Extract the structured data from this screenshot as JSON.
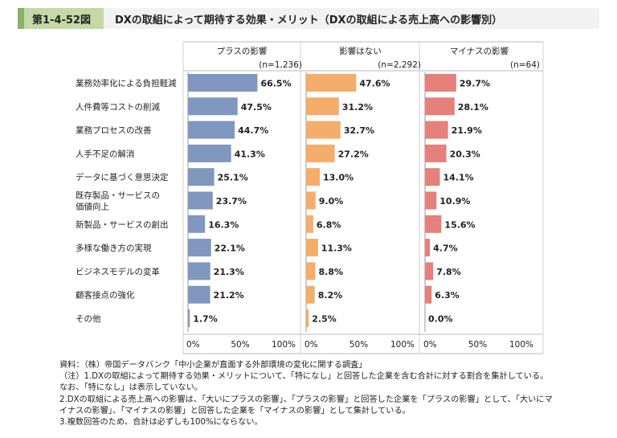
{
  "header": {
    "fig_number": "第1-4-52図",
    "title": "DXの取組によって期待する効果・メリット（DXの取組による売上高への影響別）"
  },
  "chart_data": {
    "type": "bar",
    "orientation": "horizontal",
    "categories": [
      "業務効率化による負担軽減",
      "人件費等コストの削減",
      "業務プロセスの改善",
      "人手不足の解消",
      "データに基づく意思決定",
      "既存製品・サービスの\n価値向上",
      "新製品・サービスの創出",
      "多様な働き方の実現",
      "ビジネスモデルの変革",
      "顧客接点の強化",
      "その他"
    ],
    "series": [
      {
        "name": "プラスの影響",
        "n_label": "(n=1,236)",
        "color": "#8097bf",
        "values": [
          66.5,
          47.5,
          44.7,
          41.3,
          25.1,
          23.7,
          16.3,
          22.1,
          21.3,
          21.2,
          1.7
        ],
        "labels": [
          "66.5%",
          "47.5%",
          "44.7%",
          "41.3%",
          "25.1%",
          "23.7%",
          "16.3%",
          "22.1%",
          "21.3%",
          "21.2%",
          "1.7%"
        ]
      },
      {
        "name": "影響はない",
        "n_label": "(n=2,292)",
        "color": "#f4ad6a",
        "values": [
          47.6,
          31.2,
          32.7,
          27.2,
          13.0,
          9.0,
          6.8,
          11.3,
          8.8,
          8.2,
          2.5
        ],
        "labels": [
          "47.6%",
          "31.2%",
          "32.7%",
          "27.2%",
          "13.0%",
          "9.0%",
          "6.8%",
          "11.3%",
          "8.8%",
          "8.2%",
          "2.5%"
        ]
      },
      {
        "name": "マイナスの影響",
        "n_label": "(n=64)",
        "color": "#e5807a",
        "values": [
          29.7,
          28.1,
          21.9,
          20.3,
          14.1,
          10.9,
          15.6,
          4.7,
          7.8,
          6.3,
          0.0
        ],
        "labels": [
          "29.7%",
          "28.1%",
          "21.9%",
          "20.3%",
          "14.1%",
          "10.9%",
          "15.6%",
          "4.7%",
          "7.8%",
          "6.3%",
          "0.0%"
        ]
      }
    ],
    "xlim": [
      0,
      100
    ],
    "x_ticks": [
      "0%",
      "50%",
      "100%"
    ]
  },
  "notes": [
    "資料：（株）帝国データバンク「中小企業が直面する外部環境の変化に関する調査」",
    "（注）1.DXの取組によって期待する効果・メリットについて、「特になし」と回答した企業を含む合計に対する割合を集計している。",
    "なお、「特になし」は表示していない。",
    "2.DXの取組による売上高への影響は、「大いにプラスの影響」、「プラスの影響」と回答した企業を「プラスの影響」として、「大いにマ",
    "イナスの影響」、「マイナスの影響」と回答した企業を「マイナスの影響」として集計している。",
    "3.複数回答のため、合計は必ずしも100%にならない。"
  ]
}
